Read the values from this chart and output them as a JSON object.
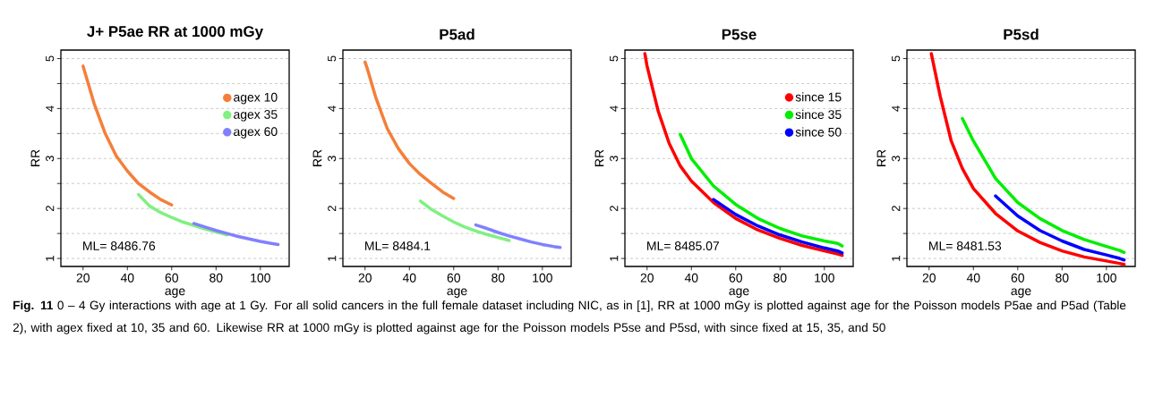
{
  "chart_data": [
    {
      "type": "line",
      "title": "J+ P5ae RR at 1000 mGy",
      "xlabel": "age",
      "ylabel": "RR",
      "xlim": [
        10,
        113
      ],
      "ylim": [
        0.84,
        5.17
      ],
      "xticks": [
        20,
        40,
        60,
        80,
        100
      ],
      "yticks": [
        1,
        {
          "value": 1.5,
          "label": null
        },
        2,
        {
          "value": 2.5,
          "label": null
        },
        3,
        {
          "value": 3.5,
          "label": null
        },
        4,
        {
          "value": 4.5,
          "label": null
        },
        5
      ],
      "grid": "y",
      "legend": "right",
      "line_style": "solid",
      "annotations": [
        "ML= 8486.76",
        "**Fig. 11** 0 – 4 Gy interactions with age at 1 Gy. For all solid cancers in the full female dataset including NIC, as in [1], RR at 1000 mGy is plotted against age for the Poisson models P5ae and P5ad (Table 2), with agex fixed at 10, 35 and 60. Likewise RR at 1000 mGy is plotted against age for the Poisson models P5se and P5sd, with since fixed at 15, 35, and 50"
      ],
      "series": [
        {
          "name": "agex 10",
          "color": "#f47f3a",
          "x": [
            20,
            21,
            25,
            30,
            35,
            40,
            45,
            50,
            55,
            60
          ],
          "values": [
            4.85,
            4.7,
            4.1,
            3.5,
            3.05,
            2.75,
            2.5,
            2.33,
            2.18,
            2.07
          ]
        },
        {
          "name": "agex 35",
          "color": "#80f080",
          "x": [
            45,
            50,
            55,
            60,
            65,
            70,
            75,
            80,
            85
          ],
          "values": [
            2.28,
            2.05,
            1.92,
            1.82,
            1.73,
            1.66,
            1.59,
            1.53,
            1.47
          ]
        },
        {
          "name": "agex 60",
          "color": "#8080ff",
          "x": [
            70,
            75,
            80,
            85,
            90,
            95,
            100,
            105,
            108
          ],
          "values": [
            1.7,
            1.63,
            1.56,
            1.5,
            1.44,
            1.39,
            1.34,
            1.3,
            1.28
          ]
        }
      ]
    },
    {
      "type": "line",
      "title": "P5ad",
      "xlabel": "age",
      "ylabel": "RR",
      "xlim": [
        10,
        113
      ],
      "ylim": [
        0.84,
        5.17
      ],
      "xticks": [
        20,
        40,
        60,
        80,
        100
      ],
      "yticks": [
        1,
        {
          "value": 1.5,
          "label": null
        },
        2,
        {
          "value": 2.5,
          "label": null
        },
        3,
        {
          "value": 3.5,
          "label": null
        },
        4,
        {
          "value": 4.5,
          "label": null
        },
        5
      ],
      "grid": "y",
      "line_style": "solid",
      "annotations": [
        "ML= 8484.1"
      ],
      "series": [
        {
          "color": "#f47f3a",
          "x": [
            20,
            21,
            25,
            30,
            35,
            40,
            45,
            50,
            55,
            60
          ],
          "values": [
            4.93,
            4.8,
            4.2,
            3.6,
            3.2,
            2.9,
            2.68,
            2.5,
            2.33,
            2.2
          ]
        },
        {
          "color": "#80f080",
          "x": [
            45,
            50,
            55,
            60,
            65,
            70,
            75,
            80,
            85
          ],
          "values": [
            2.15,
            1.98,
            1.85,
            1.73,
            1.63,
            1.55,
            1.48,
            1.42,
            1.36
          ]
        },
        {
          "color": "#8080ff",
          "x": [
            70,
            75,
            80,
            85,
            90,
            95,
            100,
            105,
            108
          ],
          "values": [
            1.67,
            1.6,
            1.52,
            1.45,
            1.39,
            1.33,
            1.28,
            1.24,
            1.22
          ]
        }
      ]
    },
    {
      "type": "line",
      "title": "P5se",
      "xlabel": "age",
      "ylabel": "RR",
      "xlim": [
        10,
        113
      ],
      "ylim": [
        0.84,
        5.17
      ],
      "xticks": [
        20,
        40,
        60,
        80,
        100
      ],
      "yticks": [
        1,
        {
          "value": 1.5,
          "label": null
        },
        2,
        {
          "value": 2.5,
          "label": null
        },
        3,
        {
          "value": 3.5,
          "label": null
        },
        4,
        {
          "value": 4.5,
          "label": null
        },
        5
      ],
      "grid": "y",
      "legend": "right",
      "line_style": "solid",
      "annotations": [
        "ML= 8485.07"
      ],
      "series": [
        {
          "name": "since 15",
          "color": "#ff0000",
          "x": [
            19,
            20,
            25,
            30,
            35,
            40,
            50,
            60,
            70,
            80,
            90,
            100,
            106,
            108
          ],
          "values": [
            5.1,
            4.85,
            3.95,
            3.3,
            2.85,
            2.55,
            2.12,
            1.8,
            1.57,
            1.4,
            1.26,
            1.15,
            1.09,
            1.06
          ]
        },
        {
          "name": "since 35",
          "color": "#00ee00",
          "x": [
            35,
            40,
            50,
            60,
            70,
            80,
            90,
            100,
            106,
            108
          ],
          "values": [
            3.48,
            3.0,
            2.45,
            2.08,
            1.8,
            1.6,
            1.45,
            1.35,
            1.3,
            1.25
          ]
        },
        {
          "name": "since 50",
          "color": "#0000ff",
          "x": [
            50,
            60,
            70,
            80,
            90,
            100,
            106,
            108
          ],
          "values": [
            2.18,
            1.88,
            1.65,
            1.47,
            1.33,
            1.21,
            1.15,
            1.11
          ]
        }
      ]
    },
    {
      "type": "line",
      "title": "P5sd",
      "xlabel": "age",
      "ylabel": "RR",
      "xlim": [
        10,
        113
      ],
      "ylim": [
        0.84,
        5.17
      ],
      "xticks": [
        20,
        40,
        60,
        80,
        100
      ],
      "yticks": [
        1,
        {
          "value": 1.5,
          "label": null
        },
        2,
        {
          "value": 2.5,
          "label": null
        },
        3,
        {
          "value": 3.5,
          "label": null
        },
        4,
        {
          "value": 4.5,
          "label": null
        },
        5
      ],
      "grid": "y",
      "line_style": "solid",
      "annotations": [
        "ML= 8481.53"
      ],
      "series": [
        {
          "color": "#ff0000",
          "x": [
            21,
            25,
            30,
            35,
            40,
            50,
            60,
            70,
            80,
            90,
            100,
            106,
            108
          ],
          "values": [
            5.1,
            4.25,
            3.35,
            2.8,
            2.4,
            1.9,
            1.55,
            1.32,
            1.15,
            1.03,
            0.95,
            0.9,
            0.88
          ]
        },
        {
          "color": "#00ee00",
          "x": [
            35,
            40,
            50,
            60,
            70,
            80,
            90,
            100,
            106,
            108
          ],
          "values": [
            3.8,
            3.35,
            2.6,
            2.12,
            1.8,
            1.56,
            1.38,
            1.24,
            1.16,
            1.12
          ]
        },
        {
          "color": "#0000ff",
          "x": [
            50,
            60,
            70,
            80,
            90,
            100,
            106,
            108
          ],
          "values": [
            2.25,
            1.85,
            1.56,
            1.35,
            1.18,
            1.07,
            1.0,
            0.97
          ]
        }
      ]
    }
  ]
}
